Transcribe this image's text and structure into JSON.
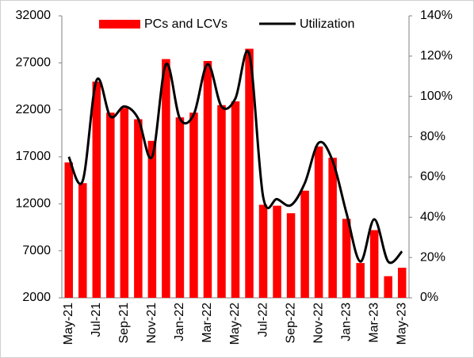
{
  "chart_data": {
    "type": "bar-line",
    "categories": [
      "May-21",
      null,
      "Jul-21",
      null,
      "Sep-21",
      null,
      "Nov-21",
      null,
      "Jan-22",
      null,
      "Mar-22",
      null,
      "May-22",
      null,
      "Jul-22",
      null,
      "Sep-22",
      null,
      "Nov-22",
      null,
      "Jan-23",
      null,
      "Mar-23",
      null,
      "May-23"
    ],
    "series": [
      {
        "name": "PCs and LCVs",
        "type": "bar",
        "color": "#ff0000",
        "values": [
          16400,
          14200,
          25000,
          21700,
          22200,
          21000,
          18700,
          27400,
          21200,
          21700,
          27200,
          22500,
          22900,
          28500,
          11900,
          11800,
          11000,
          13400,
          18100,
          16900,
          10400,
          5700,
          9200,
          4300,
          5200
        ]
      },
      {
        "name": "Utilization",
        "type": "line",
        "color": "#000000",
        "axis": "y2",
        "values": [
          70,
          58,
          108,
          90,
          95,
          89,
          70,
          116,
          89,
          91,
          116,
          95,
          99,
          121,
          50,
          49,
          46,
          57,
          77,
          68,
          42,
          18,
          39,
          18,
          23
        ]
      }
    ],
    "ylim": [
      2000,
      32000
    ],
    "yticks": [
      2000,
      7000,
      12000,
      17000,
      22000,
      27000,
      32000
    ],
    "y2lim": [
      0,
      140
    ],
    "y2ticks": [
      {
        "value": 0,
        "label": "0%"
      },
      {
        "value": 20,
        "label": "20%"
      },
      {
        "value": 40,
        "label": "40%"
      },
      {
        "value": 60,
        "label": "60%"
      },
      {
        "value": 80,
        "label": "80%"
      },
      {
        "value": 100,
        "label": "100%"
      },
      {
        "value": 120,
        "label": "120%"
      },
      {
        "value": 140,
        "label": "140%"
      }
    ],
    "grid": false,
    "legend": "top"
  }
}
